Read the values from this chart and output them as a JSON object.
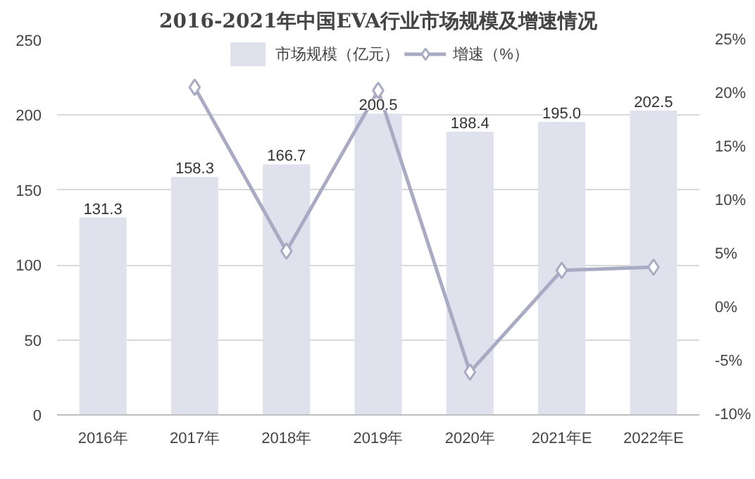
{
  "chart_data": {
    "type": "bar",
    "title": "2016-2021年中国EVA行业市场规模及增速情况",
    "categories": [
      "2016年",
      "2017年",
      "2018年",
      "2019年",
      "2020年",
      "2021年E",
      "2022年E"
    ],
    "series": [
      {
        "name": "市场规模（亿元）",
        "color": "#dfe2ec",
        "values": [
          131.3,
          158.3,
          166.7,
          200.5,
          188.4,
          195.0,
          202.5
        ],
        "value_labels": [
          "131.3",
          "158.3",
          "166.7",
          "200.5",
          "188.4",
          "195.0",
          "202.5"
        ]
      },
      {
        "name": "增速（%）",
        "type": "line",
        "axis": "y2",
        "color": "#a9abc4",
        "marker": "diamond",
        "values": [
          null,
          20.6,
          5.3,
          20.3,
          -6.0,
          3.5,
          3.8
        ]
      }
    ],
    "ylim": [
      0,
      250
    ],
    "yticks": [
      0,
      50,
      100,
      150,
      200,
      250
    ],
    "y2lim": [
      -10,
      25
    ],
    "y2ticks": [
      {
        "value": -10,
        "label": "-10%"
      },
      {
        "value": -5,
        "label": "-5%"
      },
      {
        "value": 0,
        "label": "0%"
      },
      {
        "value": 5,
        "label": "5%"
      },
      {
        "value": 10,
        "label": "10%"
      },
      {
        "value": 15,
        "label": "15%"
      },
      {
        "value": 20,
        "label": "20%"
      },
      {
        "value": 25,
        "label": "25%"
      }
    ],
    "grid": "y",
    "legend": "top"
  }
}
